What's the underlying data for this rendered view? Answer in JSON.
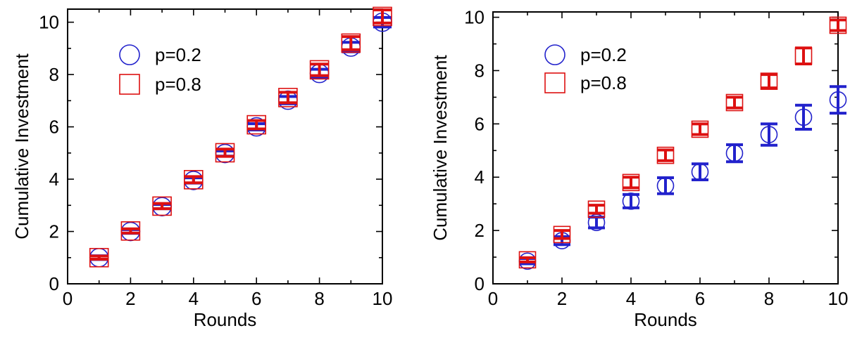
{
  "chart_data": [
    {
      "type": "scatter",
      "xlabel": "Rounds",
      "ylabel": "Cumulative Investment",
      "xlim": [
        0,
        10
      ],
      "ylim": [
        0,
        10.5
      ],
      "xticks": [
        "0",
        "2",
        "4",
        "6",
        "8",
        "10"
      ],
      "yticks": [
        "0",
        "2",
        "4",
        "6",
        "8",
        "10"
      ],
      "xtick_values": [
        0,
        2,
        4,
        6,
        8,
        10
      ],
      "ytick_values": [
        0,
        2,
        4,
        6,
        8,
        10
      ],
      "grid": false,
      "legend_position": "top-left",
      "x": [
        1,
        2,
        3,
        4,
        5,
        6,
        7,
        8,
        9,
        10
      ],
      "series": [
        {
          "name": "p=0.2",
          "marker": "circle",
          "color": "#2222cc",
          "values": [
            1.0,
            2.0,
            2.95,
            3.95,
            4.98,
            6.0,
            7.02,
            8.04,
            9.05,
            10.0
          ],
          "errors": [
            0.07,
            0.07,
            0.08,
            0.1,
            0.1,
            0.12,
            0.14,
            0.16,
            0.18,
            0.18
          ]
        },
        {
          "name": "p=0.8",
          "marker": "square",
          "color": "#dd1111",
          "values": [
            1.0,
            2.02,
            2.97,
            3.98,
            5.01,
            6.08,
            7.12,
            8.18,
            9.2,
            10.22
          ],
          "errors": [
            0.06,
            0.08,
            0.1,
            0.12,
            0.14,
            0.16,
            0.2,
            0.22,
            0.25,
            0.25
          ]
        }
      ]
    },
    {
      "type": "scatter",
      "xlabel": "Rounds",
      "ylabel": "Cumulative Investment",
      "xlim": [
        0,
        10
      ],
      "ylim": [
        0,
        10.2
      ],
      "xticks": [
        "0",
        "2",
        "4",
        "6",
        "8",
        "10"
      ],
      "yticks": [
        "0",
        "2",
        "4",
        "6",
        "8",
        "10"
      ],
      "xtick_values": [
        0,
        2,
        4,
        6,
        8,
        10
      ],
      "ytick_values": [
        0,
        2,
        4,
        6,
        8,
        10
      ],
      "grid": false,
      "legend_position": "top-left",
      "x": [
        1,
        2,
        3,
        4,
        5,
        6,
        7,
        8,
        9,
        10
      ],
      "series": [
        {
          "name": "p=0.2",
          "marker": "circle",
          "color": "#2222cc",
          "values": [
            0.85,
            1.62,
            2.3,
            3.1,
            3.68,
            4.2,
            4.9,
            5.6,
            6.25,
            6.9
          ],
          "errors": [
            0.1,
            0.15,
            0.2,
            0.25,
            0.3,
            0.3,
            0.32,
            0.4,
            0.45,
            0.5
          ]
        },
        {
          "name": "p=0.8",
          "marker": "square",
          "color": "#dd1111",
          "values": [
            0.9,
            1.85,
            2.8,
            3.8,
            4.82,
            5.8,
            6.8,
            7.6,
            8.55,
            9.7
          ],
          "errors": [
            0.08,
            0.15,
            0.15,
            0.2,
            0.2,
            0.2,
            0.2,
            0.25,
            0.3,
            0.2
          ]
        }
      ]
    }
  ]
}
